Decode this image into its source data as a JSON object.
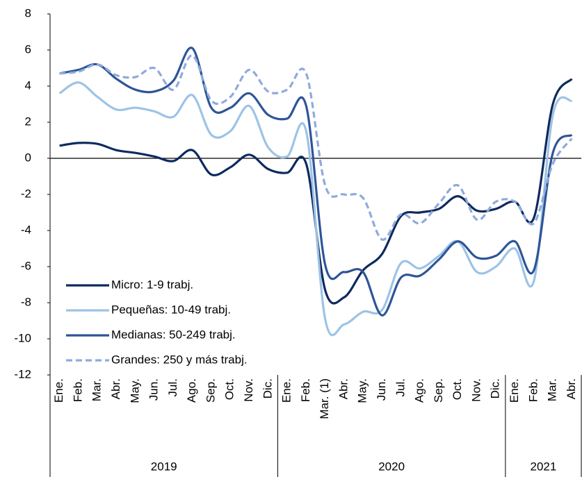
{
  "chart_data": {
    "type": "line",
    "categories": [
      "Ene.",
      "Feb.",
      "Mar.",
      "Abr.",
      "May.",
      "Jun.",
      "Jul.",
      "Ago.",
      "Sep.",
      "Oct.",
      "Nov.",
      "Dic.",
      "Ene.",
      "Feb.",
      "Mar. (1)",
      "Abr.",
      "May.",
      "Jun.",
      "Jul.",
      "Ago.",
      "Sep.",
      "Oct.",
      "Nov.",
      "Dic.",
      "Ene.",
      "Feb.",
      "Mar.",
      "Abr."
    ],
    "groups": [
      {
        "label": "2019",
        "count": 12
      },
      {
        "label": "2020",
        "count": 12
      },
      {
        "label": "2021",
        "count": 4
      }
    ],
    "series": [
      {
        "name": "Micro: 1-9 trabj.",
        "color": "#0d2a5e",
        "dashed": false,
        "values": [
          0.7,
          0.85,
          0.8,
          0.45,
          0.3,
          0.1,
          -0.15,
          0.45,
          -0.9,
          -0.5,
          0.2,
          -0.6,
          -0.8,
          -0.3,
          -7.3,
          -7.7,
          -6.2,
          -5.3,
          -3.2,
          -3.0,
          -2.8,
          -2.1,
          -2.9,
          -2.8,
          -2.4,
          -3.3,
          3.0,
          4.4
        ]
      },
      {
        "name": "Pequeñas: 10-49 trabj.",
        "color": "#9dc3e6",
        "dashed": false,
        "values": [
          3.6,
          4.2,
          3.4,
          2.7,
          2.8,
          2.6,
          2.3,
          3.5,
          1.3,
          1.5,
          2.9,
          0.6,
          0.1,
          1.5,
          -8.9,
          -9.2,
          -8.5,
          -8.4,
          -5.8,
          -6.1,
          -5.4,
          -4.6,
          -6.3,
          -6.0,
          -5.0,
          -6.8,
          2.4,
          3.2
        ]
      },
      {
        "name": "Medianas: 50-249 trabj.",
        "color": "#2e5597",
        "dashed": false,
        "values": [
          4.7,
          4.9,
          5.2,
          4.4,
          3.8,
          3.7,
          4.3,
          6.1,
          2.8,
          2.8,
          3.6,
          2.4,
          2.2,
          2.9,
          -5.9,
          -6.3,
          -6.3,
          -8.7,
          -6.6,
          -6.5,
          -5.6,
          -4.6,
          -5.5,
          -5.4,
          -4.6,
          -6.2,
          0.3,
          1.3
        ]
      },
      {
        "name": "Grandes: 250 y más trabj.",
        "color": "#8faadc",
        "dashed": true,
        "values": [
          4.7,
          4.8,
          5.2,
          4.6,
          4.5,
          5.0,
          3.8,
          5.7,
          3.2,
          3.4,
          4.9,
          3.7,
          3.8,
          4.7,
          -1.5,
          -2.0,
          -2.2,
          -4.5,
          -3.1,
          -3.6,
          -2.5,
          -1.5,
          -3.4,
          -2.4,
          -2.4,
          -3.6,
          -0.3,
          1.1
        ]
      }
    ],
    "ylim": [
      -12,
      8
    ],
    "yticks": [
      -12,
      -10,
      -8,
      -6,
      -4,
      -2,
      0,
      2,
      4,
      6,
      8
    ],
    "legend": "lower-left",
    "grid": false
  }
}
